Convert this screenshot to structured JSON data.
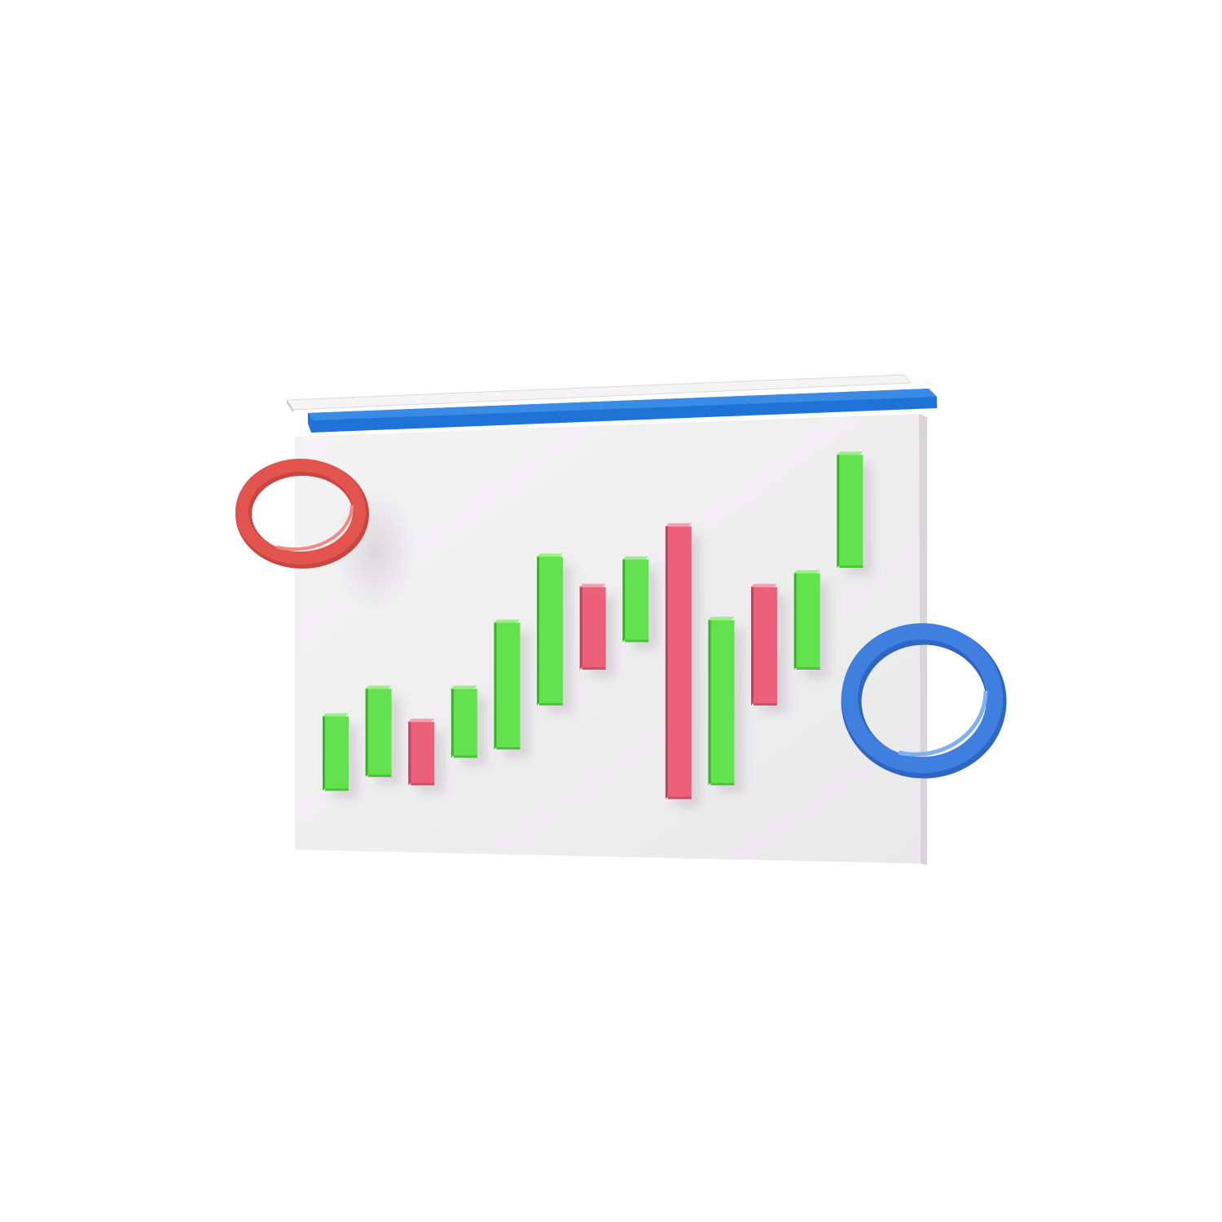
{
  "colors": {
    "background": "#ffffff",
    "board": "#efeeee",
    "board_edge": "#d9d8da",
    "rail_top": "#f3f1f2",
    "rail_blue": "#1f72d6",
    "bull": "#62e24c",
    "bear": "#ec6079",
    "ring_red": "#e2544d",
    "ring_blue": "#3f7fe0"
  },
  "icons": {
    "left_ring": "torus-ring",
    "right_ring": "torus-ring"
  },
  "chart_data": {
    "type": "candlestick",
    "candles": [
      {
        "direction": "up",
        "open": 14,
        "close": 41
      },
      {
        "direction": "up",
        "open": 19,
        "close": 51
      },
      {
        "direction": "down",
        "open": 39,
        "close": 16
      },
      {
        "direction": "up",
        "open": 26,
        "close": 51
      },
      {
        "direction": "up",
        "open": 29,
        "close": 75
      },
      {
        "direction": "up",
        "open": 45,
        "close": 99
      },
      {
        "direction": "down",
        "open": 88,
        "close": 58
      },
      {
        "direction": "up",
        "open": 68,
        "close": 98
      },
      {
        "direction": "down",
        "open": 110,
        "close": 11
      },
      {
        "direction": "up",
        "open": 16,
        "close": 76
      },
      {
        "direction": "down",
        "open": 88,
        "close": 45
      },
      {
        "direction": "up",
        "open": 58,
        "close": 93
      },
      {
        "direction": "up",
        "open": 95,
        "close": 136
      }
    ],
    "ylim": [
      0,
      145
    ],
    "grid": false,
    "title": "",
    "xlabel": "",
    "ylabel": ""
  }
}
